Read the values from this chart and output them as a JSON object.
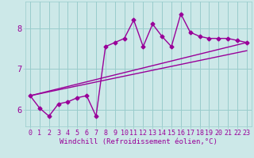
{
  "xlabel": "Windchill (Refroidissement éolien,°C)",
  "bg_color": "#cce8e8",
  "line_color": "#990099",
  "grid_color": "#99cccc",
  "x_data": [
    0,
    1,
    2,
    3,
    4,
    5,
    6,
    7,
    8,
    9,
    10,
    11,
    12,
    13,
    14,
    15,
    16,
    17,
    18,
    19,
    20,
    21,
    22,
    23
  ],
  "y_data": [
    6.35,
    6.05,
    5.85,
    6.15,
    6.2,
    6.3,
    6.35,
    5.85,
    7.55,
    7.65,
    7.75,
    8.2,
    7.55,
    8.1,
    7.8,
    7.55,
    8.35,
    7.9,
    7.8,
    7.75,
    7.75,
    7.75,
    7.7,
    7.65
  ],
  "trend1_x": [
    0,
    23
  ],
  "trend1_y": [
    6.35,
    7.65
  ],
  "trend2_x": [
    0,
    23
  ],
  "trend2_y": [
    6.35,
    7.45
  ],
  "xlim": [
    -0.5,
    23.5
  ],
  "ylim": [
    5.6,
    8.65
  ],
  "yticks": [
    6,
    7,
    8
  ],
  "xticks": [
    0,
    1,
    2,
    3,
    4,
    5,
    6,
    7,
    8,
    9,
    10,
    11,
    12,
    13,
    14,
    15,
    16,
    17,
    18,
    19,
    20,
    21,
    22,
    23
  ],
  "marker": "D",
  "markersize": 2.5,
  "linewidth": 1.0,
  "xlabel_fontsize": 6.5,
  "tick_fontsize": 6.0,
  "ytick_fontsize": 7.5
}
